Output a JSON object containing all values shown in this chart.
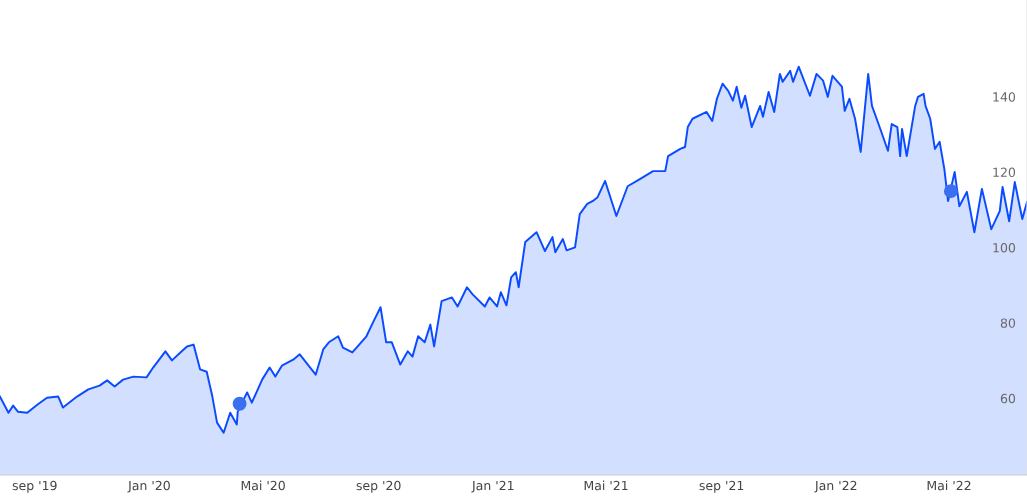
{
  "chart_data": {
    "type": "area",
    "xlim": [
      "2019-07-26",
      "2022-07-23"
    ],
    "xticks": [
      {
        "value": "2019-09-01",
        "label": "sep '19"
      },
      {
        "value": "2020-01-01",
        "label": "Jan '20"
      },
      {
        "value": "2020-05-01",
        "label": "Mai '20"
      },
      {
        "value": "2020-09-01",
        "label": "sep '20"
      },
      {
        "value": "2021-01-01",
        "label": "Jan '21"
      },
      {
        "value": "2021-05-01",
        "label": "Mai '21"
      },
      {
        "value": "2021-09-01",
        "label": "sep '21"
      },
      {
        "value": "2022-01-01",
        "label": "Jan '22"
      },
      {
        "value": "2022-05-01",
        "label": "Mai '22"
      }
    ],
    "ylim": [
      40,
      166
    ],
    "yticks": [
      60,
      80,
      100,
      120,
      140
    ],
    "grid": false,
    "legend": false,
    "series": [
      {
        "color": "#0a4bff",
        "x": [
          "2019-07-26",
          "2019-08-04",
          "2019-08-09",
          "2019-08-14",
          "2019-08-24",
          "2019-09-04",
          "2019-09-14",
          "2019-09-26",
          "2019-10-01",
          "2019-10-16",
          "2019-10-28",
          "2019-11-09",
          "2019-11-17",
          "2019-11-25",
          "2019-12-04",
          "2019-12-15",
          "2019-12-29",
          "2020-01-05",
          "2020-01-18",
          "2020-01-25",
          "2020-02-03",
          "2020-02-10",
          "2020-02-17",
          "2020-02-24",
          "2020-03-02",
          "2020-03-08",
          "2020-03-13",
          "2020-03-20",
          "2020-03-27",
          "2020-04-03",
          "2020-04-04",
          "2020-04-14",
          "2020-04-19",
          "2020-04-30",
          "2020-05-08",
          "2020-05-14",
          "2020-05-21",
          "2020-06-02",
          "2020-06-09",
          "2020-06-26",
          "2020-07-04",
          "2020-07-10",
          "2020-07-20",
          "2020-07-25",
          "2020-08-04",
          "2020-08-19",
          "2020-08-26",
          "2020-09-03",
          "2020-09-09",
          "2020-09-15",
          "2020-09-24",
          "2020-10-02",
          "2020-10-07",
          "2020-10-13",
          "2020-10-20",
          "2020-10-26",
          "2020-10-30",
          "2020-11-07",
          "2020-11-18",
          "2020-11-24",
          "2020-12-04",
          "2020-12-10",
          "2020-12-23",
          "2020-12-28",
          "2021-01-05",
          "2021-01-09",
          "2021-01-15",
          "2021-01-20",
          "2021-01-25",
          "2021-01-28",
          "2021-02-04",
          "2021-02-16",
          "2021-02-25",
          "2021-03-05",
          "2021-03-08",
          "2021-03-16",
          "2021-03-20",
          "2021-03-29",
          "2021-04-03",
          "2021-04-11",
          "2021-04-17",
          "2021-04-22",
          "2021-04-30",
          "2021-05-12",
          "2021-05-24",
          "2021-06-06",
          "2021-06-20",
          "2021-07-03",
          "2021-07-06",
          "2021-07-19",
          "2021-07-24",
          "2021-07-27",
          "2021-08-01",
          "2021-08-16",
          "2021-08-22",
          "2021-08-27",
          "2021-09-02",
          "2021-09-08",
          "2021-09-13",
          "2021-09-17",
          "2021-09-22",
          "2021-09-26",
          "2021-10-03",
          "2021-10-12",
          "2021-10-15",
          "2021-10-21",
          "2021-10-27",
          "2021-11-02",
          "2021-11-05",
          "2021-11-13",
          "2021-11-16",
          "2021-11-22",
          "2021-12-04",
          "2021-12-11",
          "2021-12-18",
          "2021-12-23",
          "2021-12-28",
          "2022-01-07",
          "2022-01-10",
          "2022-01-15",
          "2022-01-21",
          "2022-01-27",
          "2022-02-04",
          "2022-02-08",
          "2022-02-15",
          "2022-02-25",
          "2022-03-01",
          "2022-03-07",
          "2022-03-10",
          "2022-03-12",
          "2022-03-17",
          "2022-03-26",
          "2022-03-29",
          "2022-04-04",
          "2022-04-06",
          "2022-04-11",
          "2022-04-16",
          "2022-04-21",
          "2022-04-26",
          "2022-04-30",
          "2022-05-07",
          "2022-05-12",
          "2022-05-20",
          "2022-05-28",
          "2022-06-05",
          "2022-06-15",
          "2022-06-24",
          "2022-06-27",
          "2022-07-04",
          "2022-07-10",
          "2022-07-18",
          "2022-07-23"
        ],
        "values": [
          60.8,
          56.5,
          58.4,
          56.8,
          56.5,
          58.7,
          60.5,
          60.8,
          57.9,
          60.8,
          62.7,
          63.7,
          65.1,
          63.5,
          65.3,
          66.1,
          65.9,
          68.5,
          72.8,
          70.4,
          72.5,
          74.1,
          74.6,
          68.0,
          67.4,
          60.8,
          53.9,
          51.2,
          56.5,
          53.4,
          56.8,
          61.9,
          59.2,
          65.3,
          68.5,
          66.1,
          69.0,
          70.6,
          72.0,
          66.6,
          73.3,
          75.2,
          76.8,
          73.8,
          72.5,
          76.8,
          80.5,
          84.5,
          75.2,
          75.2,
          69.3,
          72.8,
          71.4,
          76.8,
          75.2,
          79.9,
          74.1,
          86.1,
          87.1,
          84.7,
          89.8,
          87.9,
          84.7,
          87.1,
          84.7,
          88.5,
          85.0,
          92.4,
          93.8,
          89.8,
          101.8,
          104.4,
          99.4,
          103.1,
          99.1,
          102.6,
          99.6,
          100.4,
          109.2,
          111.9,
          112.7,
          113.7,
          118.0,
          108.7,
          116.6,
          118.5,
          120.6,
          120.6,
          124.6,
          126.5,
          127.0,
          132.3,
          134.5,
          136.3,
          133.9,
          139.8,
          143.8,
          141.9,
          139.3,
          143.0,
          137.4,
          140.6,
          132.3,
          137.9,
          135.0,
          141.6,
          136.3,
          146.4,
          144.3,
          147.2,
          144.3,
          148.3,
          140.6,
          146.4,
          144.6,
          140.3,
          145.9,
          143.0,
          136.6,
          139.8,
          134.5,
          125.7,
          146.4,
          137.9,
          133.1,
          126.0,
          133.1,
          132.3,
          124.6,
          131.8,
          124.6,
          137.9,
          140.3,
          141.1,
          137.9,
          134.5,
          126.5,
          128.4,
          121.2,
          112.7,
          120.4,
          111.3,
          115.1,
          104.4,
          115.9,
          105.2,
          110.0,
          116.4,
          107.3,
          117.7,
          107.9,
          112.4
        ]
      },
      {
        "type": "scatter",
        "marker": "circle",
        "x": [
          "2020-04-06",
          "2022-05-03"
        ],
        "values": [
          58.9,
          115.3
        ],
        "colors": [
          "#3a6ff0",
          "#3a6ff0"
        ]
      }
    ]
  }
}
